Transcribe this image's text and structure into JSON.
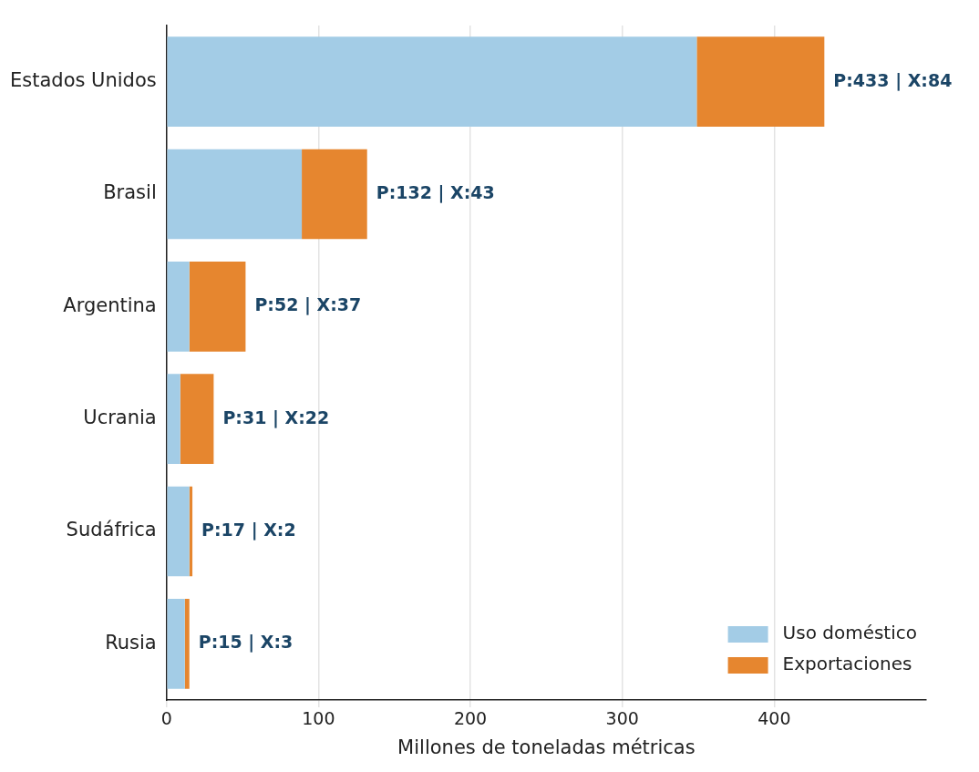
{
  "chart_data": {
    "type": "bar",
    "orientation": "horizontal",
    "stacked": true,
    "categories": [
      "Estados Unidos",
      "Brasil",
      "Argentina",
      "Ucrania",
      "Sudáfrica",
      "Rusia"
    ],
    "series": [
      {
        "name": "Uso doméstico",
        "color": "#a3cce6",
        "values": [
          349,
          89,
          15,
          9,
          15,
          12
        ]
      },
      {
        "name": "Exportaciones",
        "color": "#e6862f",
        "values": [
          84,
          43,
          37,
          22,
          2,
          3
        ]
      }
    ],
    "xlabel": "Millones de toneladas métricas",
    "xlim": [
      0,
      500
    ],
    "xticks": [
      0,
      100,
      200,
      300,
      400
    ],
    "grid": "x",
    "legend": "bottom right",
    "annotations": [
      {
        "text": "P:433 | X:84",
        "x": 433,
        "y": "Estados Unidos"
      },
      {
        "text": "P:132 | X:43",
        "x": 132,
        "y": "Brasil"
      },
      {
        "text": "P:52 | X:37",
        "x": 52,
        "y": "Argentina"
      },
      {
        "text": "P:31 | X:22",
        "x": 31,
        "y": "Ucrania"
      },
      {
        "text": "P:17 | X:2",
        "x": 17,
        "y": "Sudáfrica"
      },
      {
        "text": "P:15 | X:3",
        "x": 15,
        "y": "Rusia"
      }
    ]
  }
}
